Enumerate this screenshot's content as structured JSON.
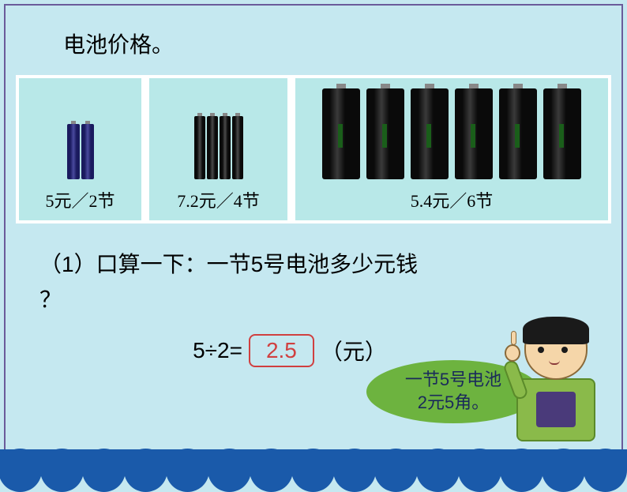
{
  "colors": {
    "background": "#c5e8f0",
    "frame_border": "#6b5b9a",
    "panel_bg": "#b8e8e8",
    "answer_border": "#d04040",
    "answer_text": "#d04040",
    "bubble_bg": "#6db33f",
    "bubble_text": "#1a2a5a",
    "wave_color": "#1a5aaa",
    "text_color": "#000000"
  },
  "typography": {
    "title_fontsize": 28,
    "price_fontsize": 22,
    "question_fontsize": 28,
    "bubble_fontsize": 22
  },
  "title": "电池价格。",
  "panels": [
    {
      "price": "5元／2节",
      "battery_count": 2,
      "size": "small"
    },
    {
      "price": "7.2元／4节",
      "battery_count": 4,
      "size": "medium"
    },
    {
      "price": "5.4元／6节",
      "battery_count": 6,
      "size": "large"
    }
  ],
  "question": {
    "line1": "（1）口算一下：一节5号电池多少元钱",
    "line2": "？"
  },
  "equation": {
    "lhs": "5÷2=",
    "answer": "2.5",
    "unit": "（元）"
  },
  "bubble": {
    "line1": "一节5号电池",
    "line2": "2元5角。"
  },
  "waves_count": 15
}
